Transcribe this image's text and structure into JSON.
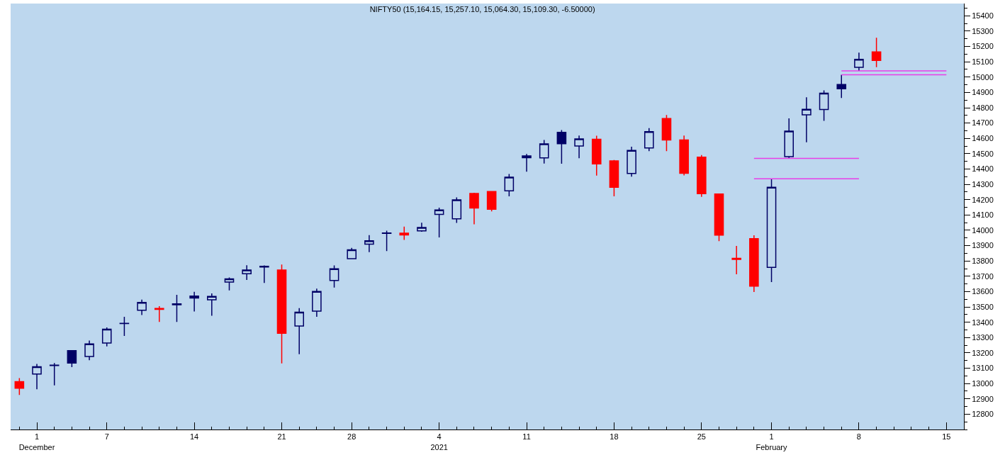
{
  "chart_data": {
    "type": "candlestick",
    "title": "NIFTY50 (15,164.15, 15,257.10, 15,064.30, 15,109.30, -6.50000)",
    "categories": [
      null,
      "1\nDecember",
      null,
      null,
      null,
      "7",
      null,
      null,
      null,
      null,
      "14",
      null,
      null,
      null,
      null,
      "21",
      null,
      null,
      null,
      "28",
      null,
      null,
      null,
      null,
      "4\n2021",
      null,
      null,
      null,
      null,
      "11",
      null,
      null,
      null,
      null,
      "18",
      null,
      null,
      null,
      null,
      "25",
      null,
      null,
      null,
      "1\nFebruary",
      null,
      null,
      null,
      null,
      "8",
      null,
      null,
      null,
      null,
      "15",
      null
    ],
    "ohlc": [
      [
        13012,
        13035,
        12926,
        12969
      ],
      [
        13062,
        13128,
        12963,
        13109
      ],
      [
        13118,
        13134,
        12988,
        13120
      ],
      [
        13215,
        13216,
        13107,
        13134
      ],
      [
        13177,
        13280,
        13152,
        13258
      ],
      [
        13264,
        13366,
        13242,
        13355
      ],
      [
        13392,
        13435,
        13311,
        13393
      ],
      [
        13478,
        13548,
        13447,
        13529
      ],
      [
        13490,
        13505,
        13402,
        13484
      ],
      [
        13520,
        13579,
        13402,
        13514
      ],
      [
        13571,
        13598,
        13470,
        13558
      ],
      [
        13547,
        13588,
        13442,
        13568
      ],
      [
        13662,
        13692,
        13608,
        13683
      ],
      [
        13716,
        13772,
        13676,
        13741
      ],
      [
        13765,
        13771,
        13656,
        13760
      ],
      [
        13741,
        13777,
        13131,
        13328
      ],
      [
        13375,
        13492,
        13192,
        13466
      ],
      [
        13473,
        13619,
        13435,
        13601
      ],
      [
        13672,
        13771,
        13626,
        13749
      ],
      [
        13815,
        13885,
        13811,
        13873
      ],
      [
        13910,
        13968,
        13858,
        13932
      ],
      [
        13980,
        13997,
        13864,
        13982
      ],
      [
        13970,
        14024,
        13937,
        13981
      ],
      [
        13996,
        14049,
        13991,
        14018
      ],
      [
        14104,
        14148,
        13954,
        14133
      ],
      [
        14075,
        14215,
        14048,
        14199
      ],
      [
        14240,
        14245,
        14039,
        14146
      ],
      [
        14253,
        14256,
        14123,
        14137
      ],
      [
        14258,
        14367,
        14222,
        14347
      ],
      [
        14474,
        14498,
        14383,
        14485
      ],
      [
        14473,
        14590,
        14436,
        14564
      ],
      [
        14639,
        14654,
        14435,
        14565
      ],
      [
        14550,
        14618,
        14471,
        14596
      ],
      [
        14594,
        14617,
        14357,
        14433
      ],
      [
        14453,
        14459,
        14222,
        14281
      ],
      [
        14371,
        14546,
        14350,
        14521
      ],
      [
        14538,
        14667,
        14517,
        14644
      ],
      [
        14730,
        14753,
        14517,
        14590
      ],
      [
        14590,
        14619,
        14358,
        14372
      ],
      [
        14477,
        14491,
        14218,
        14239
      ],
      [
        14237,
        14237,
        13929,
        13968
      ],
      [
        13810,
        13898,
        13713,
        13817
      ],
      [
        13946,
        13967,
        13597,
        13635
      ],
      [
        13758,
        14336,
        13662,
        14281
      ],
      [
        14481,
        14731,
        14469,
        14647
      ],
      [
        14754,
        14868,
        14575,
        14790
      ],
      [
        14789,
        14913,
        14714,
        14895
      ],
      [
        14952,
        15015,
        14864,
        14924
      ],
      [
        15064,
        15160,
        15041,
        15116
      ],
      [
        15164.15,
        15257.1,
        15064.3,
        15109.3
      ],
      null,
      null,
      null,
      null,
      null
    ],
    "colors": [
      "#ff0000",
      "#000066",
      "#000066",
      "#000066",
      "#000066",
      "#000066",
      "#000066",
      "#000066",
      "#ff0000",
      "#000066",
      "#000066",
      "#000066",
      "#000066",
      "#000066",
      "#000066",
      "#ff0000",
      "#000066",
      "#000066",
      "#000066",
      "#000066",
      "#000066",
      "#000066",
      "#ff0000",
      "#000066",
      "#000066",
      "#000066",
      "#ff0000",
      "#ff0000",
      "#000066",
      "#000066",
      "#000066",
      "#000066",
      "#000066",
      "#ff0000",
      "#ff0000",
      "#000066",
      "#000066",
      "#ff0000",
      "#ff0000",
      "#ff0000",
      "#ff0000",
      "#ff0000",
      "#ff0000",
      "#000066",
      "#000066",
      "#000066",
      "#000066",
      "#000066",
      "#000066",
      "#ff0000",
      null,
      null,
      null,
      null,
      null
    ],
    "series": [
      {
        "type": "line",
        "color": "#e83ee8",
        "values": [
          null,
          null,
          null,
          null,
          null,
          null,
          null,
          null,
          null,
          null,
          null,
          null,
          null,
          null,
          null,
          null,
          null,
          null,
          null,
          null,
          null,
          null,
          null,
          null,
          null,
          null,
          null,
          null,
          null,
          null,
          null,
          null,
          null,
          null,
          null,
          null,
          null,
          null,
          null,
          null,
          null,
          null,
          14336,
          14336,
          14336,
          14336,
          14336,
          14336,
          14336,
          null,
          null,
          null,
          null,
          null,
          null
        ]
      },
      {
        "type": "line",
        "color": "#e83ee8",
        "values": [
          null,
          null,
          null,
          null,
          null,
          null,
          null,
          null,
          null,
          null,
          null,
          null,
          null,
          null,
          null,
          null,
          null,
          null,
          null,
          null,
          null,
          null,
          null,
          null,
          null,
          null,
          null,
          null,
          null,
          null,
          null,
          null,
          null,
          null,
          null,
          null,
          null,
          null,
          null,
          null,
          null,
          null,
          14469,
          14469,
          14469,
          14469,
          14469,
          14469,
          14469,
          null,
          null,
          null,
          null,
          null,
          null
        ]
      },
      {
        "type": "line",
        "color": "#e83ee8",
        "values": [
          null,
          null,
          null,
          null,
          null,
          null,
          null,
          null,
          null,
          null,
          null,
          null,
          null,
          null,
          null,
          null,
          null,
          null,
          null,
          null,
          null,
          null,
          null,
          null,
          null,
          null,
          null,
          null,
          null,
          null,
          null,
          null,
          null,
          null,
          null,
          null,
          null,
          null,
          null,
          null,
          null,
          null,
          null,
          null,
          null,
          null,
          null,
          15015,
          15015,
          15015,
          15015,
          15015,
          15015,
          15015,
          null
        ]
      },
      {
        "type": "line",
        "color": "#e83ee8",
        "values": [
          null,
          null,
          null,
          null,
          null,
          null,
          null,
          null,
          null,
          null,
          null,
          null,
          null,
          null,
          null,
          null,
          null,
          null,
          null,
          null,
          null,
          null,
          null,
          null,
          null,
          null,
          null,
          null,
          null,
          null,
          null,
          null,
          null,
          null,
          null,
          null,
          null,
          null,
          null,
          null,
          null,
          null,
          null,
          null,
          null,
          null,
          null,
          15041,
          15041,
          15041,
          15041,
          15041,
          15041,
          15041,
          null
        ]
      }
    ],
    "ylim": [
      12700,
      15480
    ],
    "yticks": [
      12800,
      12900,
      13000,
      13100,
      13200,
      13300,
      13400,
      13500,
      13600,
      13700,
      13800,
      13900,
      14000,
      14100,
      14200,
      14300,
      14400,
      14500,
      14600,
      14700,
      14800,
      14900,
      15000,
      15100,
      15200,
      15300,
      15400
    ],
    "grid": false
  }
}
